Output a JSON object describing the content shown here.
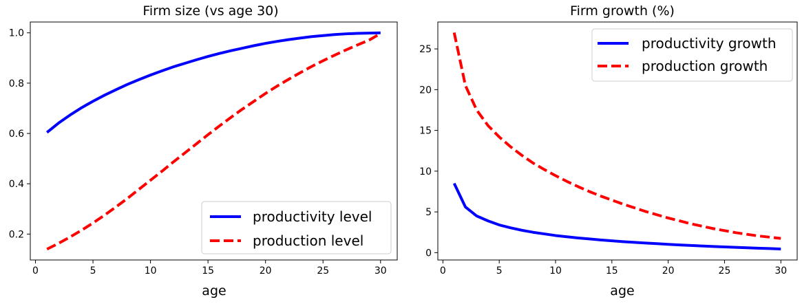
{
  "chart_data": [
    {
      "type": "line",
      "title": "Firm size (vs age 30)",
      "xlabel": "age",
      "ylabel": "",
      "xlim": [
        -0.45,
        31.45
      ],
      "ylim": [
        0.097,
        1.043
      ],
      "xticks": [
        0,
        5,
        10,
        15,
        20,
        25,
        30
      ],
      "xtick_labels": [
        "0",
        "5",
        "10",
        "15",
        "20",
        "25",
        "30"
      ],
      "yticks": [
        0.2,
        0.4,
        0.6,
        0.8,
        1.0
      ],
      "ytick_labels": [
        "0.2",
        "0.4",
        "0.6",
        "0.8",
        "1.0"
      ],
      "grid": false,
      "legend_position": "lower-right",
      "x": [
        1,
        2,
        3,
        4,
        5,
        6,
        7,
        8,
        9,
        10,
        11,
        12,
        13,
        14,
        15,
        16,
        17,
        18,
        19,
        20,
        21,
        22,
        23,
        24,
        25,
        26,
        27,
        28,
        29,
        30
      ],
      "series": [
        {
          "name": "productivity level",
          "color": "#0000ff",
          "style": "solid",
          "values": [
            0.604,
            0.641,
            0.673,
            0.702,
            0.728,
            0.752,
            0.774,
            0.795,
            0.814,
            0.832,
            0.849,
            0.865,
            0.879,
            0.893,
            0.906,
            0.918,
            0.929,
            0.939,
            0.949,
            0.958,
            0.966,
            0.973,
            0.979,
            0.985,
            0.989,
            0.993,
            0.996,
            0.998,
            0.999,
            1.0
          ]
        },
        {
          "name": "production level",
          "color": "#ff0000",
          "style": "dashed",
          "values": [
            0.14,
            0.163,
            0.188,
            0.215,
            0.244,
            0.275,
            0.308,
            0.342,
            0.378,
            0.414,
            0.45,
            0.487,
            0.523,
            0.559,
            0.595,
            0.63,
            0.664,
            0.697,
            0.728,
            0.759,
            0.788,
            0.815,
            0.841,
            0.866,
            0.889,
            0.911,
            0.932,
            0.952,
            0.971,
            0.997
          ]
        }
      ]
    },
    {
      "type": "line",
      "title": "Firm growth (%)",
      "xlabel": "age",
      "ylabel": "",
      "xlim": [
        -0.45,
        31.45
      ],
      "ylim": [
        -0.9,
        28.3
      ],
      "xticks": [
        0,
        5,
        10,
        15,
        20,
        25,
        30
      ],
      "xtick_labels": [
        "0",
        "5",
        "10",
        "15",
        "20",
        "25",
        "30"
      ],
      "yticks": [
        0,
        5,
        10,
        15,
        20,
        25
      ],
      "ytick_labels": [
        "0",
        "5",
        "10",
        "15",
        "20",
        "25"
      ],
      "grid": false,
      "legend_position": "upper-right",
      "x": [
        1,
        2,
        3,
        4,
        5,
        6,
        7,
        8,
        9,
        10,
        11,
        12,
        13,
        14,
        15,
        16,
        17,
        18,
        19,
        20,
        21,
        22,
        23,
        24,
        25,
        26,
        27,
        28,
        29,
        30
      ],
      "series": [
        {
          "name": "productivity growth",
          "color": "#0000ff",
          "style": "solid",
          "values": [
            8.5,
            5.6,
            4.5,
            3.9,
            3.4,
            3.05,
            2.75,
            2.5,
            2.3,
            2.1,
            1.95,
            1.8,
            1.68,
            1.56,
            1.45,
            1.35,
            1.26,
            1.18,
            1.1,
            1.02,
            0.95,
            0.88,
            0.82,
            0.76,
            0.7,
            0.65,
            0.6,
            0.55,
            0.5,
            0.45
          ]
        },
        {
          "name": "production growth",
          "color": "#ff0000",
          "style": "dashed",
          "values": [
            27.0,
            20.5,
            17.5,
            15.6,
            14.2,
            13.0,
            11.95,
            11.0,
            10.2,
            9.45,
            8.75,
            8.1,
            7.5,
            6.95,
            6.45,
            5.95,
            5.5,
            5.05,
            4.65,
            4.25,
            3.9,
            3.55,
            3.25,
            2.95,
            2.7,
            2.45,
            2.25,
            2.05,
            1.9,
            1.75
          ]
        }
      ]
    }
  ]
}
